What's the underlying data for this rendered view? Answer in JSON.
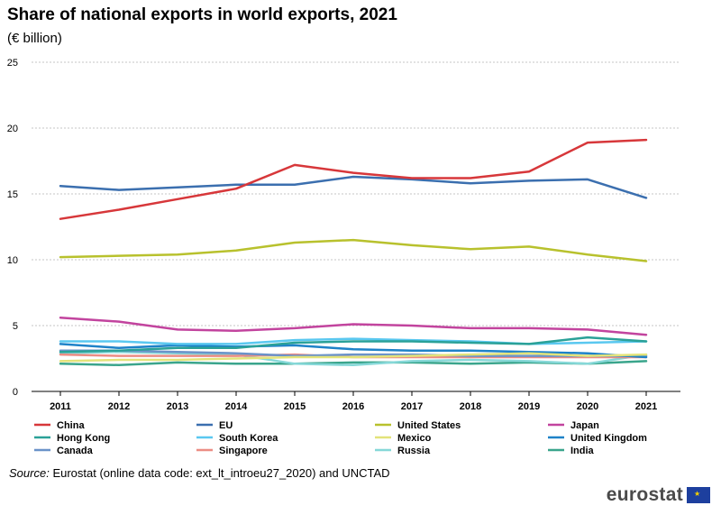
{
  "header": {
    "title": "Share of national exports in world exports, 2021",
    "unit": "(€ billion)"
  },
  "source": {
    "label": "Source:",
    "text": "Eurostat (online data code: ext_lt_introeu27_2020) and UNCTAD"
  },
  "logo": {
    "text": "eurostat",
    "flag": "eu-flag-icon"
  },
  "chart_data": {
    "type": "line",
    "title": "Share of national exports in world exports, 2021",
    "ylabel": "(€ billion)",
    "xlabel": "",
    "ylim": [
      0,
      25
    ],
    "yticks": [
      0,
      5,
      10,
      15,
      20,
      25
    ],
    "grid": true,
    "legend_position": "bottom",
    "x": [
      "2011",
      "2012",
      "2013",
      "2014",
      "2015",
      "2016",
      "2017",
      "2018",
      "2019",
      "2020",
      "2021"
    ],
    "series": [
      {
        "name": "China",
        "color": "#d7373a",
        "values": [
          13.1,
          13.8,
          14.6,
          15.4,
          17.2,
          16.6,
          16.2,
          16.2,
          16.7,
          18.9,
          19.1
        ]
      },
      {
        "name": "EU",
        "color": "#3b6faf",
        "values": [
          15.6,
          15.3,
          15.5,
          15.7,
          15.7,
          16.3,
          16.1,
          15.8,
          16.0,
          16.1,
          14.7
        ]
      },
      {
        "name": "United States",
        "color": "#b8c12d",
        "values": [
          10.2,
          10.3,
          10.4,
          10.7,
          11.3,
          11.5,
          11.1,
          10.8,
          11.0,
          10.4,
          9.9
        ]
      },
      {
        "name": "Japan",
        "color": "#c2449e",
        "values": [
          5.6,
          5.3,
          4.7,
          4.6,
          4.8,
          5.1,
          5.0,
          4.8,
          4.8,
          4.7,
          4.3
        ]
      },
      {
        "name": "Hong Kong",
        "color": "#2aa198",
        "values": [
          3.0,
          3.1,
          3.3,
          3.3,
          3.7,
          3.8,
          3.8,
          3.7,
          3.6,
          4.1,
          3.8
        ]
      },
      {
        "name": "South Korea",
        "color": "#5ac8f0",
        "values": [
          3.8,
          3.8,
          3.6,
          3.6,
          3.9,
          4.0,
          3.9,
          3.8,
          3.6,
          3.7,
          3.8
        ]
      },
      {
        "name": "Mexico",
        "color": "#e3e37a",
        "values": [
          2.3,
          2.4,
          2.4,
          2.5,
          2.6,
          2.6,
          2.7,
          2.8,
          2.9,
          2.7,
          2.8
        ]
      },
      {
        "name": "United Kingdom",
        "color": "#1e82c8",
        "values": [
          3.6,
          3.3,
          3.5,
          3.4,
          3.5,
          3.2,
          3.1,
          3.1,
          3.0,
          2.9,
          2.6
        ]
      },
      {
        "name": "Canada",
        "color": "#6b93c9",
        "values": [
          3.1,
          3.1,
          3.0,
          2.9,
          2.7,
          2.8,
          2.8,
          2.7,
          2.7,
          2.7,
          2.7
        ]
      },
      {
        "name": "Singapore",
        "color": "#ec8d84",
        "values": [
          2.8,
          2.7,
          2.7,
          2.7,
          2.8,
          2.6,
          2.6,
          2.6,
          2.6,
          2.6,
          2.6
        ]
      },
      {
        "name": "Russia",
        "color": "#86d8d8",
        "values": [
          2.9,
          3.0,
          2.9,
          2.8,
          2.1,
          2.0,
          2.3,
          2.4,
          2.3,
          2.1,
          2.8
        ]
      },
      {
        "name": "India",
        "color": "#3aa58c",
        "values": [
          2.1,
          2.0,
          2.2,
          2.1,
          2.1,
          2.2,
          2.2,
          2.1,
          2.2,
          2.1,
          2.3
        ]
      }
    ]
  }
}
